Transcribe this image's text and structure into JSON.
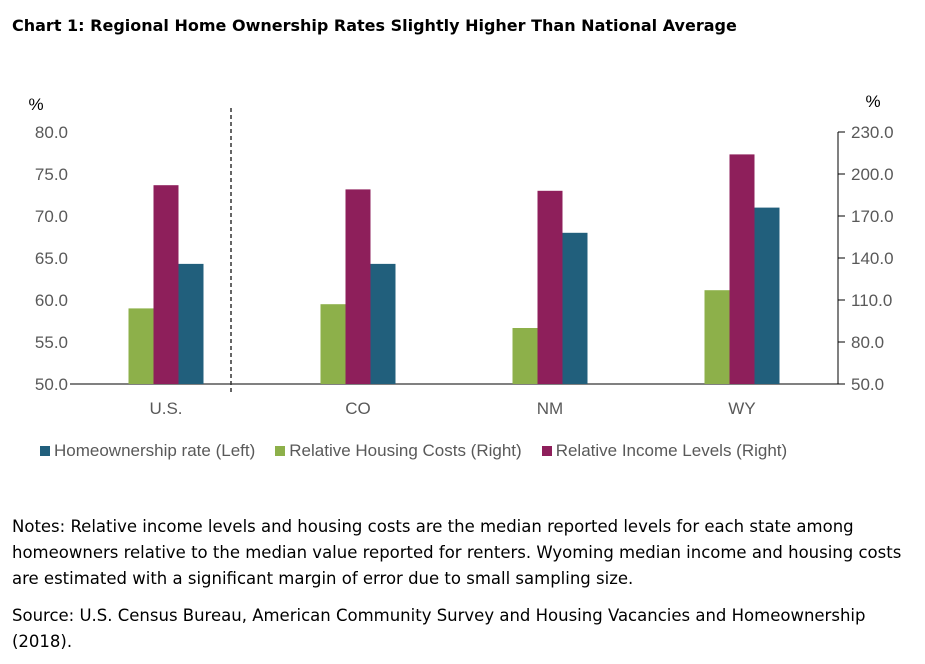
{
  "title": "Chart 1: Regional Home Ownership Rates Slightly Higher Than National Average",
  "notes": "Notes: Relative income levels and housing costs are the median reported levels for each state among homeowners relative to the median value reported for renters. Wyoming median income and housing costs are estimated with a significant margin of error due to small sampling size.",
  "source": "Source: U.S. Census Bureau, American Community Survey and Housing Vacancies and Homeownership (2018).",
  "chart_data": {
    "type": "bar",
    "categories": [
      "U.S.",
      "CO",
      "NM",
      "WY"
    ],
    "left_axis": {
      "unit_label": "%",
      "ylim": [
        50,
        80
      ],
      "ticks": [
        "80.0",
        "75.0",
        "70.0",
        "65.0",
        "60.0",
        "55.0",
        "50.0"
      ]
    },
    "right_axis": {
      "unit_label": "%",
      "ylim": [
        50,
        230
      ],
      "ticks": [
        "230.0",
        "200.0",
        "170.0",
        "140.0",
        "110.0",
        "80.0",
        "50.0"
      ]
    },
    "series": [
      {
        "name": "Relative Housing Costs (Right)",
        "axis": "right",
        "color": "#8db04a",
        "values": [
          104,
          107,
          90,
          117
        ]
      },
      {
        "name": "Relative Income Levels (Right)",
        "axis": "right",
        "color": "#8e1f5b",
        "values": [
          192,
          189,
          188,
          214
        ]
      },
      {
        "name": "Homeownership rate (Left)",
        "axis": "left",
        "color": "#215f7c",
        "values": [
          64.3,
          64.3,
          68.0,
          71.0
        ]
      }
    ],
    "legend_order": [
      "Homeownership rate (Left)",
      "Relative Housing Costs (Right)",
      "Relative Income Levels (Right)"
    ],
    "legend_placement": "bottom",
    "grid": false
  }
}
